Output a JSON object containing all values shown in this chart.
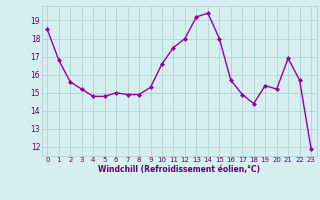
{
  "x": [
    0,
    1,
    2,
    3,
    4,
    5,
    6,
    7,
    8,
    9,
    10,
    11,
    12,
    13,
    14,
    15,
    16,
    17,
    18,
    19,
    20,
    21,
    22,
    23
  ],
  "y": [
    18.5,
    16.8,
    15.6,
    15.2,
    14.8,
    14.8,
    15.0,
    14.9,
    14.9,
    15.3,
    16.6,
    17.5,
    18.0,
    19.2,
    19.4,
    18.0,
    15.7,
    14.9,
    14.4,
    15.4,
    15.2,
    16.9,
    15.7,
    11.9
  ],
  "line_color": "#990099",
  "marker": "D",
  "marker_size": 2,
  "line_width": 1.0,
  "bg_color": "#d5eef0",
  "grid_color": "#aacccc",
  "xlabel": "Windchill (Refroidissement éolien,°C)",
  "tick_color": "#660066",
  "yticks": [
    12,
    13,
    14,
    15,
    16,
    17,
    18,
    19
  ],
  "xticks": [
    0,
    1,
    2,
    3,
    4,
    5,
    6,
    7,
    8,
    9,
    10,
    11,
    12,
    13,
    14,
    15,
    16,
    17,
    18,
    19,
    20,
    21,
    22,
    23
  ],
  "ylim": [
    11.5,
    19.8
  ],
  "xlim": [
    -0.5,
    23.5
  ]
}
